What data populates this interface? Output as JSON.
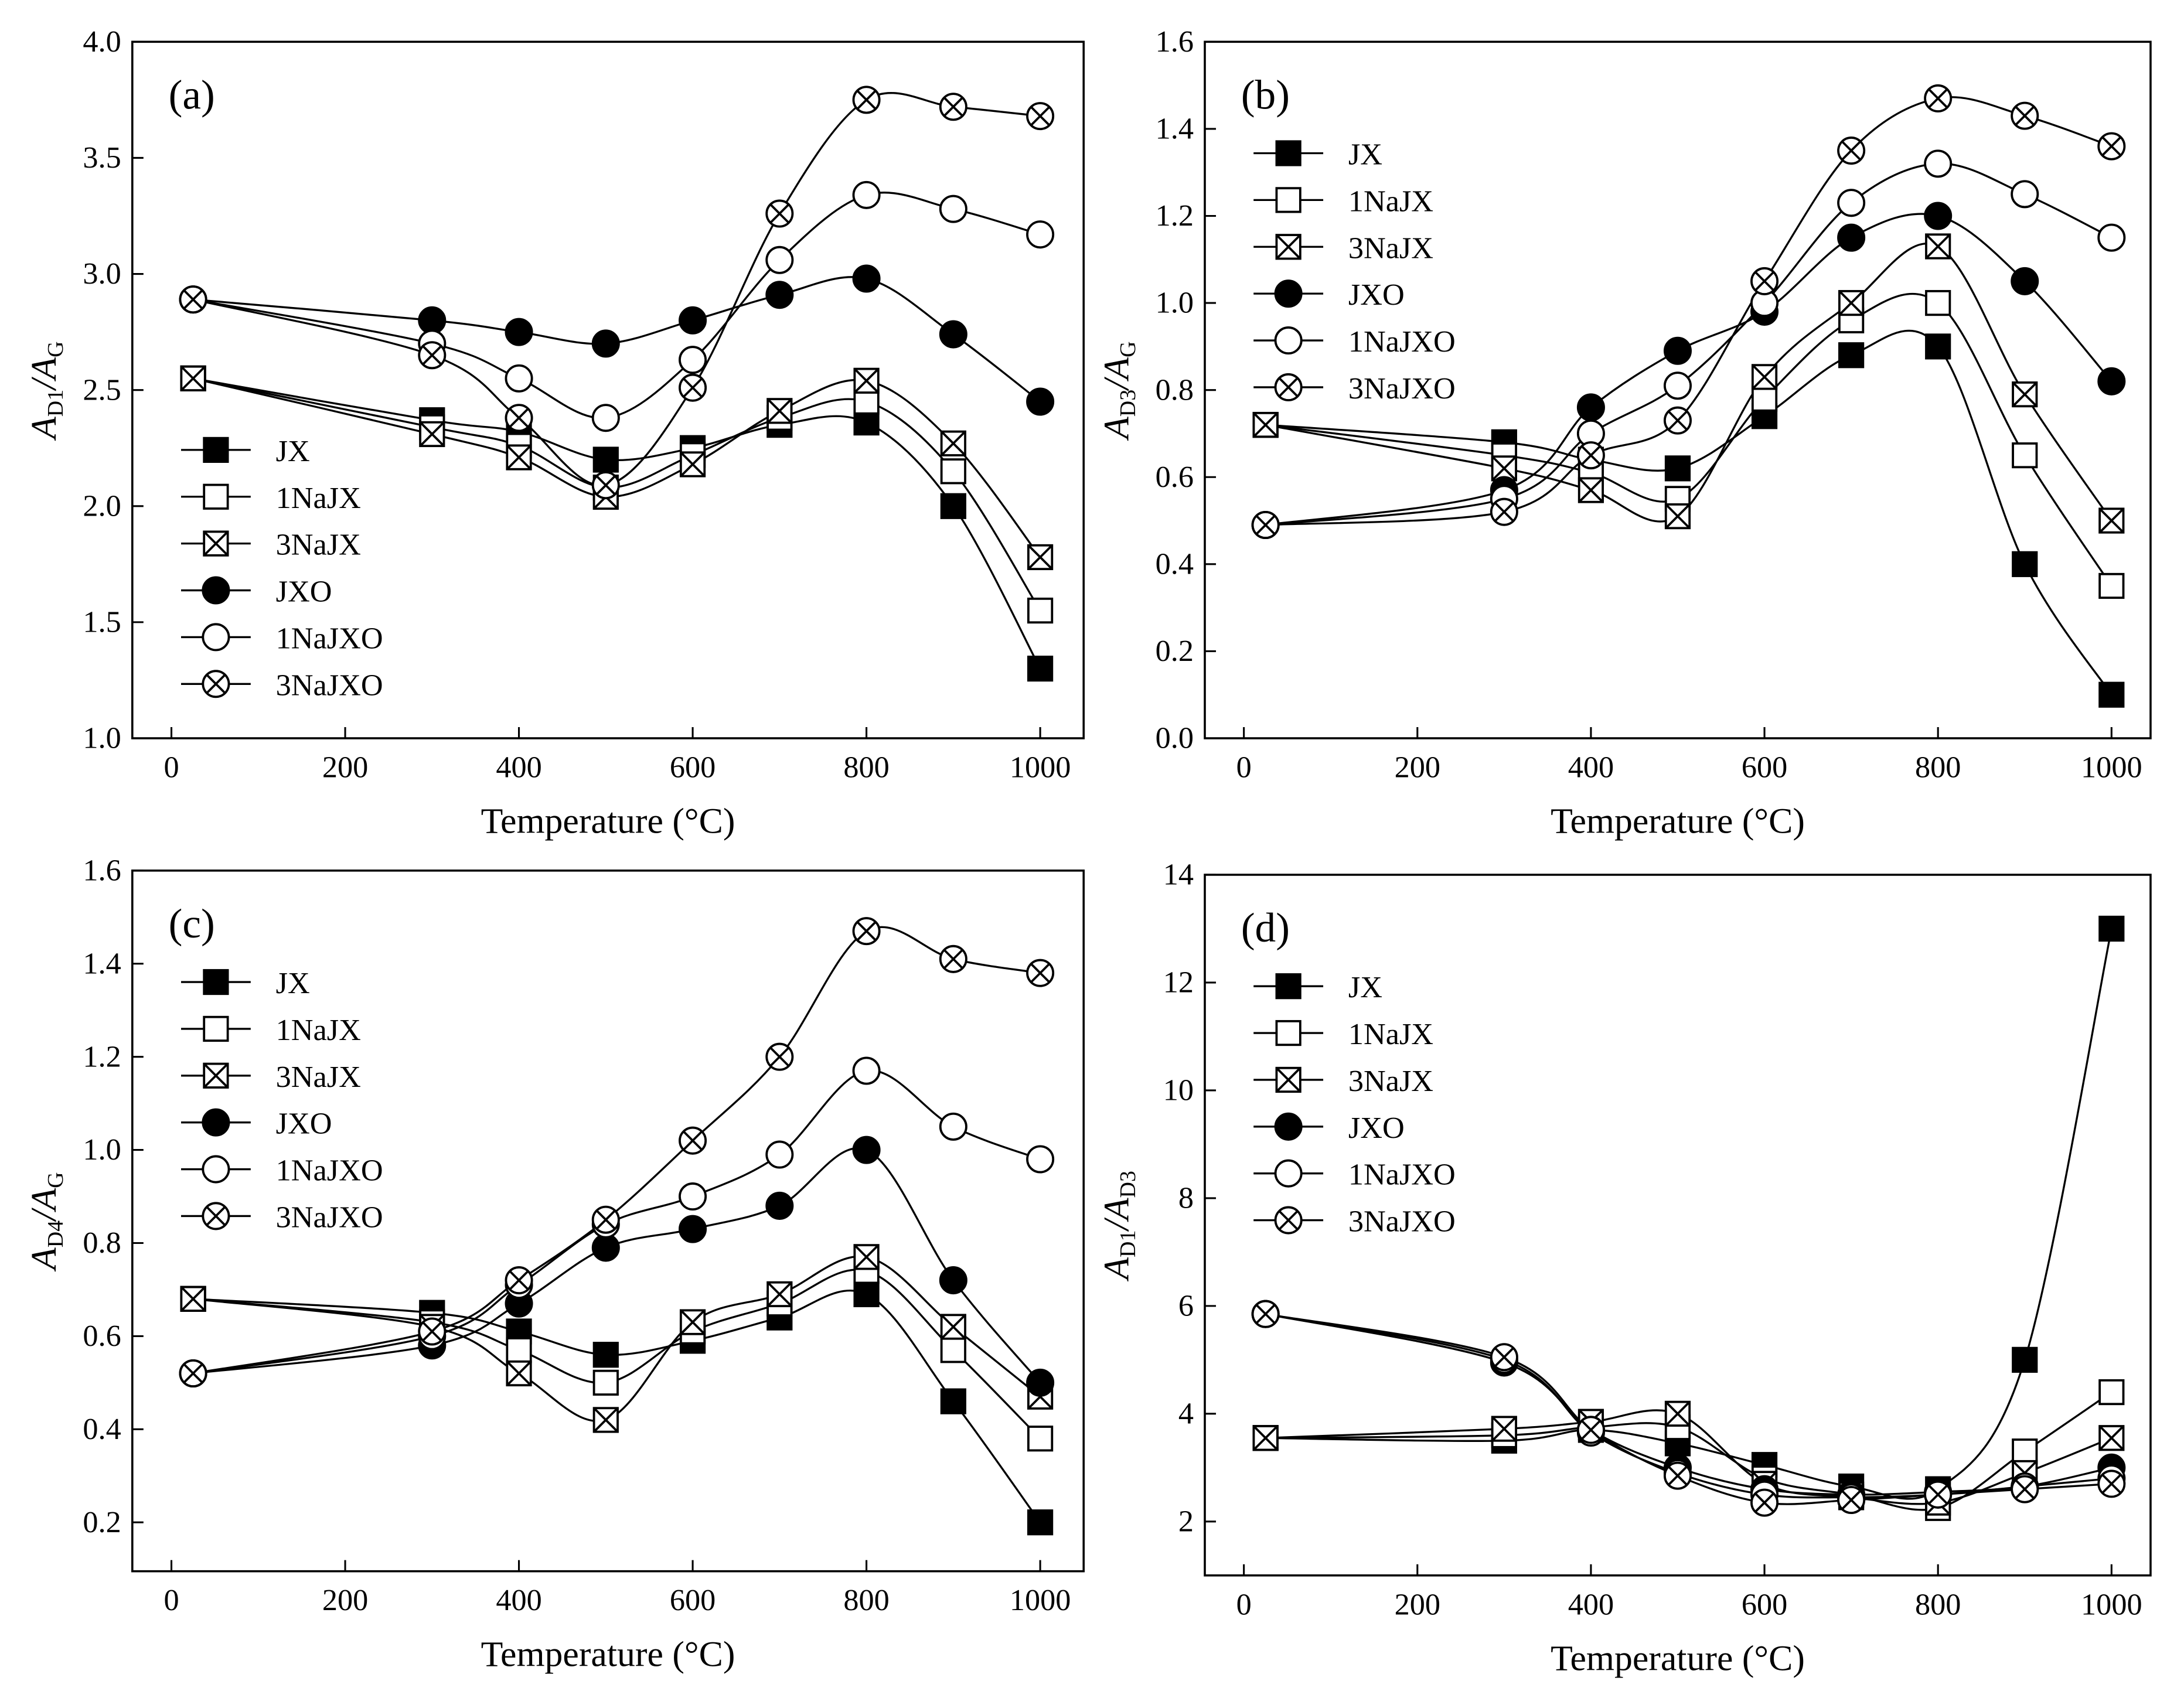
{
  "chart_data": [
    {
      "type": "line",
      "label": "(a)",
      "y_label": [
        "A",
        "D1",
        "/A",
        "G"
      ],
      "x_label": "Temperature (°C)",
      "x": [
        25,
        300,
        400,
        500,
        600,
        700,
        800,
        900,
        1000
      ],
      "xlim": [
        -45,
        1050
      ],
      "xticks": [
        0,
        200,
        400,
        600,
        800,
        1000
      ],
      "ylim": [
        1,
        4
      ],
      "yticks": [
        {
          "value": 1,
          "label": "1.0"
        },
        1.5,
        {
          "value": 2,
          "label": "2.0"
        },
        2.5,
        {
          "value": 3,
          "label": "3.0"
        },
        3.5,
        {
          "value": 4,
          "label": "4.0"
        }
      ],
      "legend": "lower left",
      "series": [
        {
          "name": "JX",
          "marker": "filled-square",
          "color": "#000000",
          "values": [
            2.55,
            2.37,
            2.32,
            2.2,
            2.25,
            2.35,
            2.36,
            2.0,
            1.3
          ]
        },
        {
          "name": "1NaJX",
          "marker": "open-square",
          "color": "#000000",
          "values": [
            2.55,
            2.34,
            2.26,
            2.08,
            2.22,
            2.38,
            2.45,
            2.15,
            1.55
          ]
        },
        {
          "name": "3NaJX",
          "marker": "crossed-square",
          "color": "#000000",
          "values": [
            2.55,
            2.31,
            2.21,
            2.04,
            2.18,
            2.41,
            2.54,
            2.27,
            1.78
          ]
        },
        {
          "name": "JXO",
          "marker": "filled-circle",
          "color": "#000000",
          "values": [
            2.89,
            2.8,
            2.75,
            2.7,
            2.8,
            2.91,
            2.98,
            2.74,
            2.45
          ]
        },
        {
          "name": "1NaJXO",
          "marker": "open-circle",
          "color": "#000000",
          "values": [
            2.89,
            2.7,
            2.55,
            2.38,
            2.63,
            3.06,
            3.34,
            3.28,
            3.17
          ]
        },
        {
          "name": "3NaJXO",
          "marker": "crossed-circle",
          "color": "#000000",
          "values": [
            2.89,
            2.65,
            2.38,
            2.09,
            2.51,
            3.26,
            3.75,
            3.72,
            3.68
          ]
        }
      ]
    },
    {
      "type": "line",
      "label": "(b)",
      "y_label": [
        "A",
        "D3",
        "/A",
        "G"
      ],
      "x_label": "Temperature (°C)",
      "x": [
        25,
        300,
        400,
        500,
        600,
        700,
        800,
        900,
        1000
      ],
      "xlim": [
        -45,
        1045
      ],
      "xticks": [
        0,
        200,
        400,
        600,
        800,
        1000
      ],
      "ylim": [
        0,
        1.6
      ],
      "yticks": [
        {
          "value": 0,
          "label": "0.0"
        },
        0.2,
        0.4,
        0.6,
        0.8,
        {
          "value": 1,
          "label": "1.0"
        },
        1.2,
        1.4,
        1.6
      ],
      "legend": "upper left",
      "series": [
        {
          "name": "JX",
          "marker": "filled-square",
          "color": "#000000",
          "values": [
            0.72,
            0.68,
            0.64,
            0.62,
            0.74,
            0.88,
            0.9,
            0.4,
            0.1
          ]
        },
        {
          "name": "1NaJX",
          "marker": "open-square",
          "color": "#000000",
          "values": [
            0.72,
            0.65,
            0.61,
            0.55,
            0.78,
            0.96,
            1.0,
            0.65,
            0.35
          ]
        },
        {
          "name": "3NaJX",
          "marker": "crossed-square",
          "color": "#000000",
          "values": [
            0.72,
            0.62,
            0.57,
            0.51,
            0.83,
            1.0,
            1.13,
            0.79,
            0.5
          ]
        },
        {
          "name": "JXO",
          "marker": "filled-circle",
          "color": "#000000",
          "values": [
            0.49,
            0.57,
            0.76,
            0.89,
            0.98,
            1.15,
            1.2,
            1.05,
            0.82
          ]
        },
        {
          "name": "1NaJXO",
          "marker": "open-circle",
          "color": "#000000",
          "values": [
            0.49,
            0.55,
            0.7,
            0.81,
            1.0,
            1.23,
            1.32,
            1.25,
            1.15
          ]
        },
        {
          "name": "3NaJXO",
          "marker": "crossed-circle",
          "color": "#000000",
          "values": [
            0.49,
            0.52,
            0.65,
            0.73,
            1.05,
            1.35,
            1.47,
            1.43,
            1.36
          ]
        }
      ]
    },
    {
      "type": "line",
      "label": "(c)",
      "y_label": [
        "A",
        "D4",
        "/A",
        "G"
      ],
      "x_label": "Temperature (°C)",
      "x": [
        25,
        300,
        400,
        500,
        600,
        700,
        800,
        900,
        1000
      ],
      "xlim": [
        -45,
        1050
      ],
      "xticks": [
        0,
        200,
        400,
        600,
        800,
        1000
      ],
      "ylim": [
        0.095,
        1.6
      ],
      "yticks": [
        0.2,
        0.4,
        0.6,
        0.8,
        {
          "value": 1,
          "label": "1.0"
        },
        1.2,
        1.4,
        1.6
      ],
      "legend": "upper left",
      "series": [
        {
          "name": "JX",
          "marker": "filled-square",
          "color": "#000000",
          "values": [
            0.68,
            0.65,
            0.61,
            0.56,
            0.59,
            0.64,
            0.69,
            0.46,
            0.2
          ]
        },
        {
          "name": "1NaJX",
          "marker": "open-square",
          "color": "#000000",
          "values": [
            0.68,
            0.63,
            0.57,
            0.5,
            0.61,
            0.67,
            0.74,
            0.57,
            0.38
          ]
        },
        {
          "name": "3NaJX",
          "marker": "crossed-square",
          "color": "#000000",
          "values": [
            0.68,
            0.62,
            0.52,
            0.42,
            0.63,
            0.69,
            0.77,
            0.62,
            0.47
          ]
        },
        {
          "name": "JXO",
          "marker": "filled-circle",
          "color": "#000000",
          "values": [
            0.52,
            0.58,
            0.67,
            0.79,
            0.83,
            0.88,
            1.0,
            0.72,
            0.5
          ]
        },
        {
          "name": "1NaJXO",
          "marker": "open-circle",
          "color": "#000000",
          "values": [
            0.52,
            0.6,
            0.71,
            0.84,
            0.9,
            0.99,
            1.17,
            1.05,
            0.98
          ]
        },
        {
          "name": "3NaJXO",
          "marker": "crossed-circle",
          "color": "#000000",
          "values": [
            0.52,
            0.61,
            0.72,
            0.85,
            1.02,
            1.2,
            1.47,
            1.41,
            1.38
          ]
        }
      ]
    },
    {
      "type": "line",
      "label": "(d)",
      "y_label": [
        "A",
        "D1",
        "/A",
        "D3"
      ],
      "x_label": "Temperature (°C)",
      "x": [
        25,
        300,
        400,
        500,
        600,
        700,
        800,
        900,
        1000
      ],
      "xlim": [
        -45,
        1045
      ],
      "xticks": [
        0,
        200,
        400,
        600,
        800,
        1000
      ],
      "ylim": [
        1.0,
        14
      ],
      "yticks": [
        2,
        4,
        6,
        8,
        10,
        12,
        14
      ],
      "legend": "upper left",
      "series": [
        {
          "name": "JX",
          "marker": "filled-square",
          "color": "#000000",
          "values": [
            3.55,
            3.5,
            3.7,
            3.45,
            3.05,
            2.65,
            2.6,
            5.0,
            13.0
          ]
        },
        {
          "name": "1NaJX",
          "marker": "open-square",
          "color": "#000000",
          "values": [
            3.55,
            3.6,
            3.75,
            3.75,
            2.8,
            2.5,
            2.25,
            3.3,
            4.4
          ]
        },
        {
          "name": "3NaJX",
          "marker": "crossed-square",
          "color": "#000000",
          "values": [
            3.55,
            3.72,
            3.85,
            4.0,
            2.7,
            2.45,
            2.35,
            2.9,
            3.55
          ]
        },
        {
          "name": "JXO",
          "marker": "filled-circle",
          "color": "#000000",
          "values": [
            5.85,
            4.95,
            3.7,
            3.0,
            2.6,
            2.5,
            2.55,
            2.65,
            3.0
          ]
        },
        {
          "name": "1NaJXO",
          "marker": "open-circle",
          "color": "#000000",
          "values": [
            5.85,
            5.0,
            3.65,
            2.9,
            2.5,
            2.45,
            2.5,
            2.65,
            2.8
          ]
        },
        {
          "name": "3NaJXO",
          "marker": "crossed-circle",
          "color": "#000000",
          "values": [
            5.85,
            5.05,
            3.7,
            2.85,
            2.35,
            2.4,
            2.5,
            2.6,
            2.7
          ]
        }
      ]
    }
  ]
}
